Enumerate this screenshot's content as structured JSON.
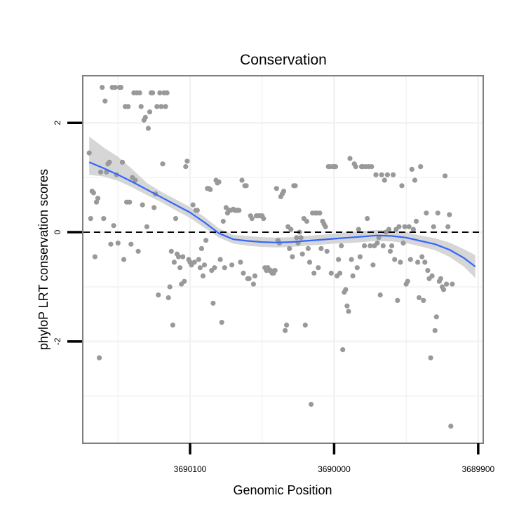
{
  "chart_data": {
    "type": "scatter",
    "title": "Conservation",
    "xlabel": "Genomic Position",
    "ylabel": "phyloP LRT conservation scores",
    "x_reversed": true,
    "xlim": [
      3690174,
      3689897
    ],
    "ylim": [
      -3.85,
      2.85
    ],
    "x_ticks": [
      {
        "value": 3690100,
        "label": "3690100"
      },
      {
        "value": 3690000,
        "label": "3690000"
      },
      {
        "value": 3689900,
        "label": "3689900"
      }
    ],
    "y_ticks": [
      {
        "value": 2,
        "label": "2"
      },
      {
        "value": 0,
        "label": "0"
      },
      {
        "value": -2,
        "label": "-2"
      }
    ],
    "grid": true,
    "reference_line": {
      "y": 0,
      "style": "dashed",
      "color": "#000000"
    },
    "colors": {
      "points": "#999999",
      "smooth": "#3366ff",
      "ribbon": "#cccccc",
      "panel_border": "#7f7f7f",
      "grid": "#f2f2f2"
    },
    "smooth": {
      "method": "loess",
      "x": [
        3690170,
        3690160,
        3690150,
        3690140,
        3690130,
        3690120,
        3690110,
        3690100,
        3690090,
        3690080,
        3690070,
        3690060,
        3690050,
        3690040,
        3690030,
        3690020,
        3690010,
        3690000,
        3689990,
        3689980,
        3689970,
        3689960,
        3689950,
        3689940,
        3689930,
        3689920,
        3689910,
        3689902
      ],
      "y": [
        1.28,
        1.17,
        1.05,
        0.92,
        0.78,
        0.64,
        0.5,
        0.36,
        0.18,
        -0.02,
        -0.13,
        -0.16,
        -0.18,
        -0.19,
        -0.18,
        -0.16,
        -0.14,
        -0.12,
        -0.1,
        -0.08,
        -0.06,
        -0.07,
        -0.1,
        -0.16,
        -0.22,
        -0.32,
        -0.47,
        -0.63
      ],
      "lower": [
        1.05,
        1.02,
        0.94,
        0.82,
        0.68,
        0.55,
        0.4,
        0.26,
        0.08,
        -0.1,
        -0.21,
        -0.25,
        -0.27,
        -0.28,
        -0.27,
        -0.25,
        -0.23,
        -0.21,
        -0.2,
        -0.18,
        -0.16,
        -0.17,
        -0.2,
        -0.26,
        -0.33,
        -0.45,
        -0.63,
        -0.84
      ],
      "upper": [
        1.75,
        1.55,
        1.38,
        1.15,
        0.9,
        0.74,
        0.6,
        0.46,
        0.28,
        0.07,
        -0.05,
        -0.07,
        -0.09,
        -0.1,
        -0.09,
        -0.07,
        -0.05,
        -0.03,
        0.0,
        0.02,
        0.04,
        0.03,
        0.0,
        -0.06,
        -0.11,
        -0.19,
        -0.31,
        -0.42
      ]
    },
    "points": [
      [
        3690170,
        1.45
      ],
      [
        3690169,
        0.25
      ],
      [
        3690168,
        0.75
      ],
      [
        3690167,
        0.72
      ],
      [
        3690166,
        -0.45
      ],
      [
        3690165,
        0.55
      ],
      [
        3690164,
        0.62
      ],
      [
        3690163,
        -2.3
      ],
      [
        3690162,
        1.1
      ],
      [
        3690161,
        2.65
      ],
      [
        3690160,
        0.25
      ],
      [
        3690159,
        2.4
      ],
      [
        3690158,
        1.1
      ],
      [
        3690157,
        1.25
      ],
      [
        3690156,
        1.28
      ],
      [
        3690155,
        -0.22
      ],
      [
        3690154,
        2.65
      ],
      [
        3690153,
        0.12
      ],
      [
        3690152,
        2.65
      ],
      [
        3690151,
        1.05
      ],
      [
        3690150,
        -0.2
      ],
      [
        3690149,
        2.65
      ],
      [
        3690148,
        2.65
      ],
      [
        3690147,
        1.28
      ],
      [
        3690146,
        -0.5
      ],
      [
        3690145,
        2.3
      ],
      [
        3690144,
        0.55
      ],
      [
        3690143,
        2.3
      ],
      [
        3690142,
        0.55
      ],
      [
        3690141,
        -0.22
      ],
      [
        3690140,
        1.0
      ],
      [
        3690139,
        2.55
      ],
      [
        3690138,
        0.95
      ],
      [
        3690137,
        2.55
      ],
      [
        3690136,
        -0.35
      ],
      [
        3690135,
        2.55
      ],
      [
        3690134,
        2.3
      ],
      [
        3690133,
        0.5
      ],
      [
        3690132,
        2.05
      ],
      [
        3690131,
        2.1
      ],
      [
        3690130,
        0.1
      ],
      [
        3690129,
        1.9
      ],
      [
        3690128,
        2.2
      ],
      [
        3690127,
        2.55
      ],
      [
        3690126,
        2.55
      ],
      [
        3690125,
        0.45
      ],
      [
        3690124,
        0.7
      ],
      [
        3690123,
        2.3
      ],
      [
        3690122,
        -1.15
      ],
      [
        3690121,
        2.55
      ],
      [
        3690120,
        2.3
      ],
      [
        3690119,
        1.25
      ],
      [
        3690118,
        2.55
      ],
      [
        3690117,
        2.3
      ],
      [
        3690116,
        2.55
      ],
      [
        3690115,
        -1.2
      ],
      [
        3690114,
        -1.0
      ],
      [
        3690113,
        -0.35
      ],
      [
        3690112,
        -1.7
      ],
      [
        3690111,
        -0.55
      ],
      [
        3690110,
        0.25
      ],
      [
        3690109,
        -0.4
      ],
      [
        3690108,
        -0.45
      ],
      [
        3690107,
        -0.65
      ],
      [
        3690106,
        -0.95
      ],
      [
        3690105,
        -0.45
      ],
      [
        3690104,
        -0.9
      ],
      [
        3690103,
        1.2
      ],
      [
        3690102,
        1.3
      ],
      [
        3690101,
        -0.5
      ],
      [
        3690100,
        -0.55
      ],
      [
        3690099,
        -0.6
      ],
      [
        3690098,
        0.5
      ],
      [
        3690097,
        -0.55
      ],
      [
        3690096,
        0.4
      ],
      [
        3690095,
        0.4
      ],
      [
        3690094,
        -0.5
      ],
      [
        3690093,
        -0.65
      ],
      [
        3690092,
        -0.3
      ],
      [
        3690091,
        -0.8
      ],
      [
        3690090,
        -0.6
      ],
      [
        3690089,
        -0.15
      ],
      [
        3690088,
        0.8
      ],
      [
        3690087,
        0.8
      ],
      [
        3690086,
        0.78
      ],
      [
        3690085,
        -0.7
      ],
      [
        3690084,
        -1.3
      ],
      [
        3690083,
        -0.65
      ],
      [
        3690082,
        0.95
      ],
      [
        3690081,
        0.9
      ],
      [
        3690080,
        0.92
      ],
      [
        3690079,
        -0.5
      ],
      [
        3690078,
        -1.65
      ],
      [
        3690077,
        0.2
      ],
      [
        3690076,
        -0.65
      ],
      [
        3690075,
        0.45
      ],
      [
        3690074,
        0.35
      ],
      [
        3690073,
        0.4
      ],
      [
        3690072,
        0.4
      ],
      [
        3690071,
        -0.6
      ],
      [
        3690070,
        0.42
      ],
      [
        3690069,
        0.4
      ],
      [
        3690068,
        0.4
      ],
      [
        3690067,
        0.4
      ],
      [
        3690066,
        0.4
      ],
      [
        3690065,
        -0.55
      ],
      [
        3690064,
        0.95
      ],
      [
        3690063,
        -0.75
      ],
      [
        3690062,
        0.85
      ],
      [
        3690061,
        0.85
      ],
      [
        3690060,
        -0.85
      ],
      [
        3690059,
        -0.85
      ],
      [
        3690058,
        0.3
      ],
      [
        3690057,
        0.25
      ],
      [
        3690056,
        -0.95
      ],
      [
        3690055,
        -0.8
      ],
      [
        3690054,
        0.3
      ],
      [
        3690053,
        0.3
      ],
      [
        3690052,
        0.3
      ],
      [
        3690051,
        0.3
      ],
      [
        3690050,
        0.3
      ],
      [
        3690049,
        0.25
      ],
      [
        3690048,
        -0.65
      ],
      [
        3690047,
        -0.7
      ],
      [
        3690046,
        -0.65
      ],
      [
        3690045,
        -0.7
      ],
      [
        3690044,
        -0.7
      ],
      [
        3690043,
        -0.75
      ],
      [
        3690042,
        -0.75
      ],
      [
        3690041,
        -0.7
      ],
      [
        3690040,
        0.8
      ],
      [
        3690039,
        -0.15
      ],
      [
        3690038,
        -0.2
      ],
      [
        3690037,
        0.65
      ],
      [
        3690036,
        0.7
      ],
      [
        3690035,
        0.75
      ],
      [
        3690034,
        -1.8
      ],
      [
        3690033,
        -1.7
      ],
      [
        3690032,
        0.1
      ],
      [
        3690031,
        -0.3
      ],
      [
        3690030,
        0.05
      ],
      [
        3690029,
        -0.45
      ],
      [
        3690028,
        0.85
      ],
      [
        3690027,
        0.85
      ],
      [
        3690026,
        -0.1
      ],
      [
        3690025,
        -0.2
      ],
      [
        3690024,
        0.0
      ],
      [
        3690023,
        -0.1
      ],
      [
        3690022,
        -0.4
      ],
      [
        3690021,
        0.25
      ],
      [
        3690020,
        -1.7
      ],
      [
        3690019,
        0.2
      ],
      [
        3690018,
        -0.3
      ],
      [
        3690017,
        -0.55
      ],
      [
        3690016,
        -3.15
      ],
      [
        3690015,
        0.35
      ],
      [
        3690014,
        -0.75
      ],
      [
        3690013,
        0.35
      ],
      [
        3690012,
        0.35
      ],
      [
        3690011,
        -0.65
      ],
      [
        3690010,
        0.35
      ],
      [
        3690009,
        -0.3
      ],
      [
        3690008,
        0.2
      ],
      [
        3690007,
        0.15
      ],
      [
        3690006,
        0.1
      ],
      [
        3690005,
        -0.35
      ],
      [
        3690004,
        1.2
      ],
      [
        3690003,
        1.2
      ],
      [
        3690002,
        -0.75
      ],
      [
        3690001,
        1.2
      ],
      [
        3690000,
        1.2
      ],
      [
        3689999,
        1.2
      ],
      [
        3689998,
        -0.8
      ],
      [
        3689997,
        -0.5
      ],
      [
        3689996,
        -0.75
      ],
      [
        3689995,
        -0.25
      ],
      [
        3689994,
        -2.15
      ],
      [
        3689993,
        -1.1
      ],
      [
        3689992,
        -1.05
      ],
      [
        3689991,
        -1.35
      ],
      [
        3689990,
        -1.45
      ],
      [
        3689989,
        1.35
      ],
      [
        3689988,
        -0.5
      ],
      [
        3689987,
        -0.8
      ],
      [
        3689986,
        1.25
      ],
      [
        3689985,
        1.2
      ],
      [
        3689984,
        -0.65
      ],
      [
        3689983,
        0.05
      ],
      [
        3689982,
        -0.45
      ],
      [
        3689981,
        1.2
      ],
      [
        3689980,
        1.2
      ],
      [
        3689979,
        -0.25
      ],
      [
        3689978,
        1.2
      ],
      [
        3689977,
        0.25
      ],
      [
        3689976,
        1.2
      ],
      [
        3689975,
        -0.25
      ],
      [
        3689974,
        1.2
      ],
      [
        3689973,
        -0.6
      ],
      [
        3689972,
        -0.25
      ],
      [
        3689971,
        1.05
      ],
      [
        3689970,
        -0.2
      ],
      [
        3689969,
        -0.1
      ],
      [
        3689968,
        -1.15
      ],
      [
        3689967,
        1.05
      ],
      [
        3689966,
        -0.25
      ],
      [
        3689965,
        0.95
      ],
      [
        3689964,
        0.0
      ],
      [
        3689963,
        1.05
      ],
      [
        3689962,
        0.05
      ],
      [
        3689961,
        -0.35
      ],
      [
        3689960,
        -0.25
      ],
      [
        3689959,
        1.05
      ],
      [
        3689958,
        -0.5
      ],
      [
        3689957,
        0.05
      ],
      [
        3689956,
        -1.25
      ],
      [
        3689955,
        0.1
      ],
      [
        3689954,
        -0.55
      ],
      [
        3689953,
        0.85
      ],
      [
        3689952,
        -0.2
      ],
      [
        3689951,
        0.1
      ],
      [
        3689950,
        -0.95
      ],
      [
        3689949,
        -0.9
      ],
      [
        3689948,
        0.1
      ],
      [
        3689947,
        -0.5
      ],
      [
        3689946,
        1.15
      ],
      [
        3689945,
        0.05
      ],
      [
        3689944,
        0.95
      ],
      [
        3689943,
        0.2
      ],
      [
        3689942,
        -0.55
      ],
      [
        3689941,
        -1.2
      ],
      [
        3689940,
        1.2
      ],
      [
        3689939,
        -0.45
      ],
      [
        3689938,
        -1.25
      ],
      [
        3689937,
        -0.55
      ],
      [
        3689936,
        0.35
      ],
      [
        3689935,
        -0.7
      ],
      [
        3689934,
        -0.85
      ],
      [
        3689933,
        -2.3
      ],
      [
        3689932,
        -0.8
      ],
      [
        3689931,
        0.1
      ],
      [
        3689930,
        -1.8
      ],
      [
        3689929,
        -1.55
      ],
      [
        3689928,
        0.35
      ],
      [
        3689927,
        -0.9
      ],
      [
        3689926,
        -0.85
      ],
      [
        3689925,
        -1.0
      ],
      [
        3689924,
        -1.05
      ],
      [
        3689923,
        1.03
      ],
      [
        3689922,
        -0.95
      ],
      [
        3689921,
        0.1
      ],
      [
        3689920,
        0.32
      ],
      [
        3689919,
        -3.55
      ],
      [
        3689918,
        -0.95
      ]
    ]
  }
}
